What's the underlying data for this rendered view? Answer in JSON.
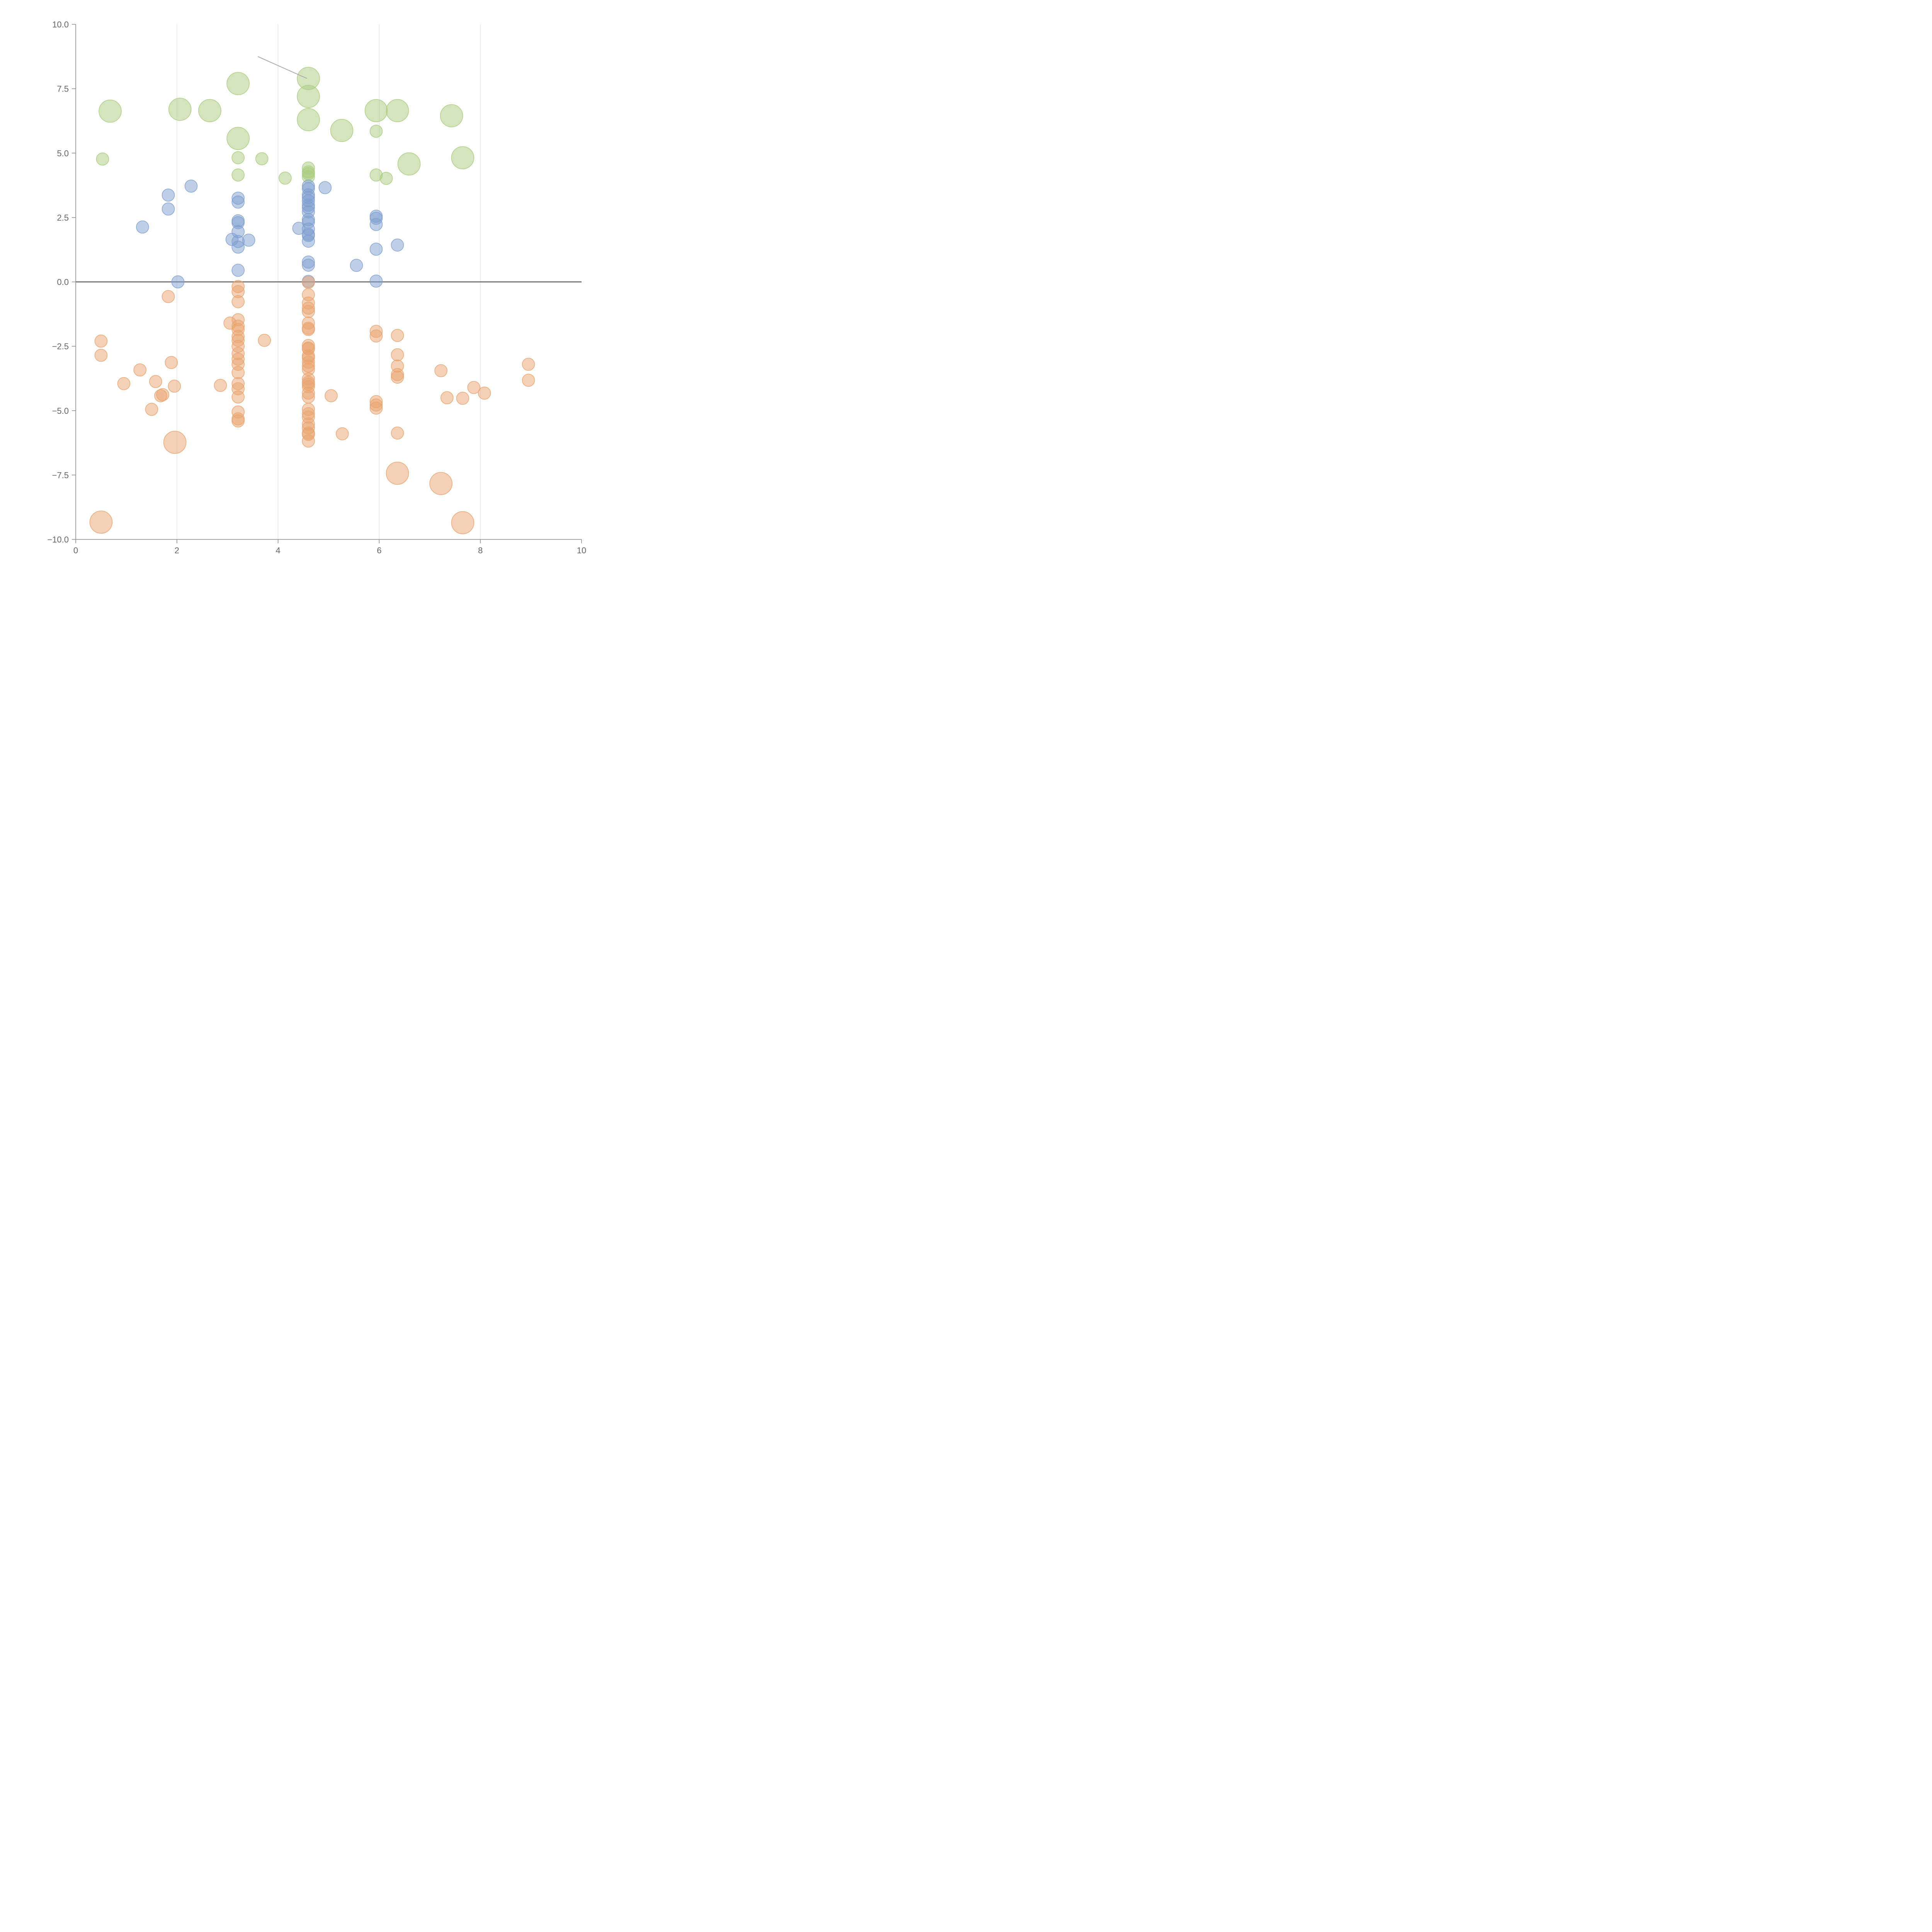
{
  "chart_data": {
    "type": "scatter",
    "title": "",
    "xlabel": "",
    "ylabel": "",
    "xlim": [
      0,
      10
    ],
    "ylim": [
      -10,
      10
    ],
    "x_ticks": [
      0,
      2,
      4,
      6,
      8,
      10
    ],
    "x_tick_labels": [
      "0",
      "2",
      "4",
      "6",
      "8",
      "10"
    ],
    "y_ticks": [
      10,
      7.5,
      5,
      2.5,
      0,
      -2.5,
      -5,
      -7.5,
      -10
    ],
    "y_tick_labels": [
      "10.0",
      "7.5",
      "5.0",
      "2.5",
      "0.0",
      "−2.5",
      "−5.0",
      "−7.5",
      "−10.0"
    ],
    "vertical_gridlines": [
      2,
      4,
      6,
      8
    ],
    "horizontal_reference_line": 0,
    "colors": {
      "green": "#a9cc7d",
      "blue": "#7e9fd0",
      "orange": "#e9a36e",
      "axis": "#888888",
      "grid": "#dddddd",
      "zero_line": "#777777"
    },
    "annotation_line": {
      "x": [
        3.6,
        4.57
      ],
      "y": [
        8.75,
        7.9
      ]
    },
    "series": [
      {
        "name": "green",
        "color": "#a9cc7d",
        "points": [
          [
            0.68,
            6.63,
            "L"
          ],
          [
            2.06,
            6.7,
            "L"
          ],
          [
            2.65,
            6.65,
            "L"
          ],
          [
            3.21,
            7.7,
            "L"
          ],
          [
            3.21,
            5.57,
            "L"
          ],
          [
            4.6,
            7.9,
            "L"
          ],
          [
            4.6,
            7.2,
            "L"
          ],
          [
            4.6,
            6.3,
            "L"
          ],
          [
            5.26,
            5.88,
            "L"
          ],
          [
            5.94,
            6.65,
            "L"
          ],
          [
            6.36,
            6.65,
            "L"
          ],
          [
            7.43,
            6.45,
            "L"
          ],
          [
            6.59,
            4.58,
            "L"
          ],
          [
            7.65,
            4.82,
            "L"
          ],
          [
            0.53,
            4.77,
            "S"
          ],
          [
            3.21,
            4.82,
            "S"
          ],
          [
            3.68,
            4.78,
            "S"
          ],
          [
            3.21,
            4.15,
            "S"
          ],
          [
            4.14,
            4.03,
            "S"
          ],
          [
            4.6,
            4.42,
            "S"
          ],
          [
            4.6,
            4.27,
            "S"
          ],
          [
            4.6,
            4.2,
            "S"
          ],
          [
            4.6,
            4.08,
            "S"
          ],
          [
            5.94,
            5.85,
            "S"
          ],
          [
            5.94,
            4.15,
            "S"
          ],
          [
            6.14,
            4.02,
            "S"
          ]
        ]
      },
      {
        "name": "blue",
        "color": "#7e9fd0",
        "points": [
          [
            1.32,
            2.13,
            "S"
          ],
          [
            1.83,
            3.37,
            "S"
          ],
          [
            1.83,
            2.83,
            "S"
          ],
          [
            2.28,
            3.72,
            "S"
          ],
          [
            2.02,
            0.0,
            "S"
          ],
          [
            3.21,
            3.25,
            "S"
          ],
          [
            3.21,
            3.1,
            "S"
          ],
          [
            3.21,
            2.37,
            "S"
          ],
          [
            3.21,
            2.3,
            "S"
          ],
          [
            3.21,
            1.95,
            "S"
          ],
          [
            3.09,
            1.65,
            "S"
          ],
          [
            3.21,
            1.57,
            "S"
          ],
          [
            3.21,
            1.35,
            "S"
          ],
          [
            3.42,
            1.62,
            "S"
          ],
          [
            3.21,
            0.45,
            "S"
          ],
          [
            4.41,
            2.08,
            "S"
          ],
          [
            4.6,
            3.72,
            "S"
          ],
          [
            4.6,
            3.62,
            "S"
          ],
          [
            4.6,
            3.38,
            "S"
          ],
          [
            4.6,
            3.28,
            "S"
          ],
          [
            4.6,
            3.15,
            "S"
          ],
          [
            4.6,
            2.98,
            "S"
          ],
          [
            4.6,
            2.88,
            "S"
          ],
          [
            4.6,
            2.72,
            "S"
          ],
          [
            4.6,
            2.42,
            "S"
          ],
          [
            4.6,
            2.32,
            "S"
          ],
          [
            4.6,
            2.05,
            "S"
          ],
          [
            4.6,
            1.85,
            "S"
          ],
          [
            4.6,
            1.8,
            "S"
          ],
          [
            4.6,
            1.58,
            "S"
          ],
          [
            4.6,
            0.77,
            "S"
          ],
          [
            4.6,
            0.65,
            "S"
          ],
          [
            4.6,
            0.02,
            "S"
          ],
          [
            4.93,
            3.66,
            "S"
          ],
          [
            5.55,
            0.64,
            "S"
          ],
          [
            5.94,
            2.55,
            "S"
          ],
          [
            5.94,
            2.47,
            "S"
          ],
          [
            5.94,
            2.23,
            "S"
          ],
          [
            5.94,
            1.27,
            "S"
          ],
          [
            5.94,
            0.03,
            "S"
          ],
          [
            6.36,
            1.43,
            "S"
          ]
        ]
      },
      {
        "name": "orange",
        "color": "#e9a36e",
        "points": [
          [
            0.5,
            -9.33,
            "L"
          ],
          [
            1.96,
            -6.23,
            "L"
          ],
          [
            6.36,
            -7.43,
            "L"
          ],
          [
            7.22,
            -7.83,
            "L"
          ],
          [
            7.65,
            -9.35,
            "L"
          ],
          [
            0.5,
            -2.3,
            "S"
          ],
          [
            0.5,
            -2.85,
            "S"
          ],
          [
            0.95,
            -3.95,
            "S"
          ],
          [
            1.27,
            -3.42,
            "S"
          ],
          [
            1.5,
            -4.95,
            "S"
          ],
          [
            1.58,
            -3.87,
            "S"
          ],
          [
            1.68,
            -4.42,
            "S"
          ],
          [
            1.72,
            -4.38,
            "S"
          ],
          [
            1.83,
            -0.57,
            "S"
          ],
          [
            1.89,
            -3.13,
            "S"
          ],
          [
            1.95,
            -4.05,
            "S"
          ],
          [
            2.86,
            -4.02,
            "S"
          ],
          [
            3.05,
            -1.6,
            "S"
          ],
          [
            3.21,
            -0.18,
            "S"
          ],
          [
            3.21,
            -0.38,
            "S"
          ],
          [
            3.21,
            -0.77,
            "S"
          ],
          [
            3.21,
            -1.47,
            "S"
          ],
          [
            3.21,
            -1.72,
            "S"
          ],
          [
            3.21,
            -1.85,
            "S"
          ],
          [
            3.21,
            -2.12,
            "S"
          ],
          [
            3.21,
            -2.27,
            "S"
          ],
          [
            3.21,
            -2.5,
            "S"
          ],
          [
            3.21,
            -2.78,
            "S"
          ],
          [
            3.21,
            -3.0,
            "S"
          ],
          [
            3.21,
            -3.2,
            "S"
          ],
          [
            3.21,
            -3.52,
            "S"
          ],
          [
            3.21,
            -3.95,
            "S"
          ],
          [
            3.21,
            -4.15,
            "S"
          ],
          [
            3.21,
            -4.47,
            "S"
          ],
          [
            3.21,
            -5.05,
            "S"
          ],
          [
            3.21,
            -5.32,
            "S"
          ],
          [
            3.21,
            -5.4,
            "S"
          ],
          [
            3.73,
            -2.27,
            "S"
          ],
          [
            4.6,
            -0.02,
            "S"
          ],
          [
            4.6,
            -0.5,
            "S"
          ],
          [
            4.6,
            -0.82,
            "S"
          ],
          [
            4.6,
            -1.02,
            "S"
          ],
          [
            4.6,
            -1.15,
            "S"
          ],
          [
            4.6,
            -1.6,
            "S"
          ],
          [
            4.6,
            -1.8,
            "S"
          ],
          [
            4.6,
            -1.85,
            "S"
          ],
          [
            4.6,
            -2.47,
            "S"
          ],
          [
            4.6,
            -2.57,
            "S"
          ],
          [
            4.6,
            -2.6,
            "S"
          ],
          [
            4.6,
            -2.87,
            "S"
          ],
          [
            4.6,
            -2.95,
            "S"
          ],
          [
            4.6,
            -3.12,
            "S"
          ],
          [
            4.6,
            -3.27,
            "S"
          ],
          [
            4.6,
            -3.4,
            "S"
          ],
          [
            4.6,
            -3.77,
            "S"
          ],
          [
            4.6,
            -3.9,
            "S"
          ],
          [
            4.6,
            -3.97,
            "S"
          ],
          [
            4.6,
            -4.07,
            "S"
          ],
          [
            4.6,
            -4.32,
            "S"
          ],
          [
            4.6,
            -4.47,
            "S"
          ],
          [
            4.6,
            -4.95,
            "S"
          ],
          [
            4.6,
            -5.12,
            "S"
          ],
          [
            4.6,
            -5.25,
            "S"
          ],
          [
            4.6,
            -5.52,
            "S"
          ],
          [
            4.6,
            -5.67,
            "S"
          ],
          [
            4.6,
            -5.87,
            "S"
          ],
          [
            4.6,
            -5.92,
            "S"
          ],
          [
            4.6,
            -6.18,
            "S"
          ],
          [
            5.05,
            -4.42,
            "S"
          ],
          [
            5.27,
            -5.9,
            "S"
          ],
          [
            5.94,
            -1.92,
            "S"
          ],
          [
            5.94,
            -2.1,
            "S"
          ],
          [
            5.94,
            -4.65,
            "S"
          ],
          [
            5.94,
            -4.78,
            "S"
          ],
          [
            5.94,
            -4.9,
            "S"
          ],
          [
            6.36,
            -2.08,
            "S"
          ],
          [
            6.36,
            -2.83,
            "S"
          ],
          [
            6.36,
            -3.27,
            "S"
          ],
          [
            6.36,
            -3.6,
            "S"
          ],
          [
            6.36,
            -3.7,
            "S"
          ],
          [
            6.36,
            -5.87,
            "S"
          ],
          [
            7.22,
            -3.45,
            "S"
          ],
          [
            7.34,
            -4.5,
            "S"
          ],
          [
            7.65,
            -4.52,
            "S"
          ],
          [
            7.87,
            -4.1,
            "S"
          ],
          [
            8.08,
            -4.32,
            "S"
          ],
          [
            8.95,
            -3.2,
            "S"
          ],
          [
            8.95,
            -3.82,
            "S"
          ]
        ]
      }
    ]
  }
}
